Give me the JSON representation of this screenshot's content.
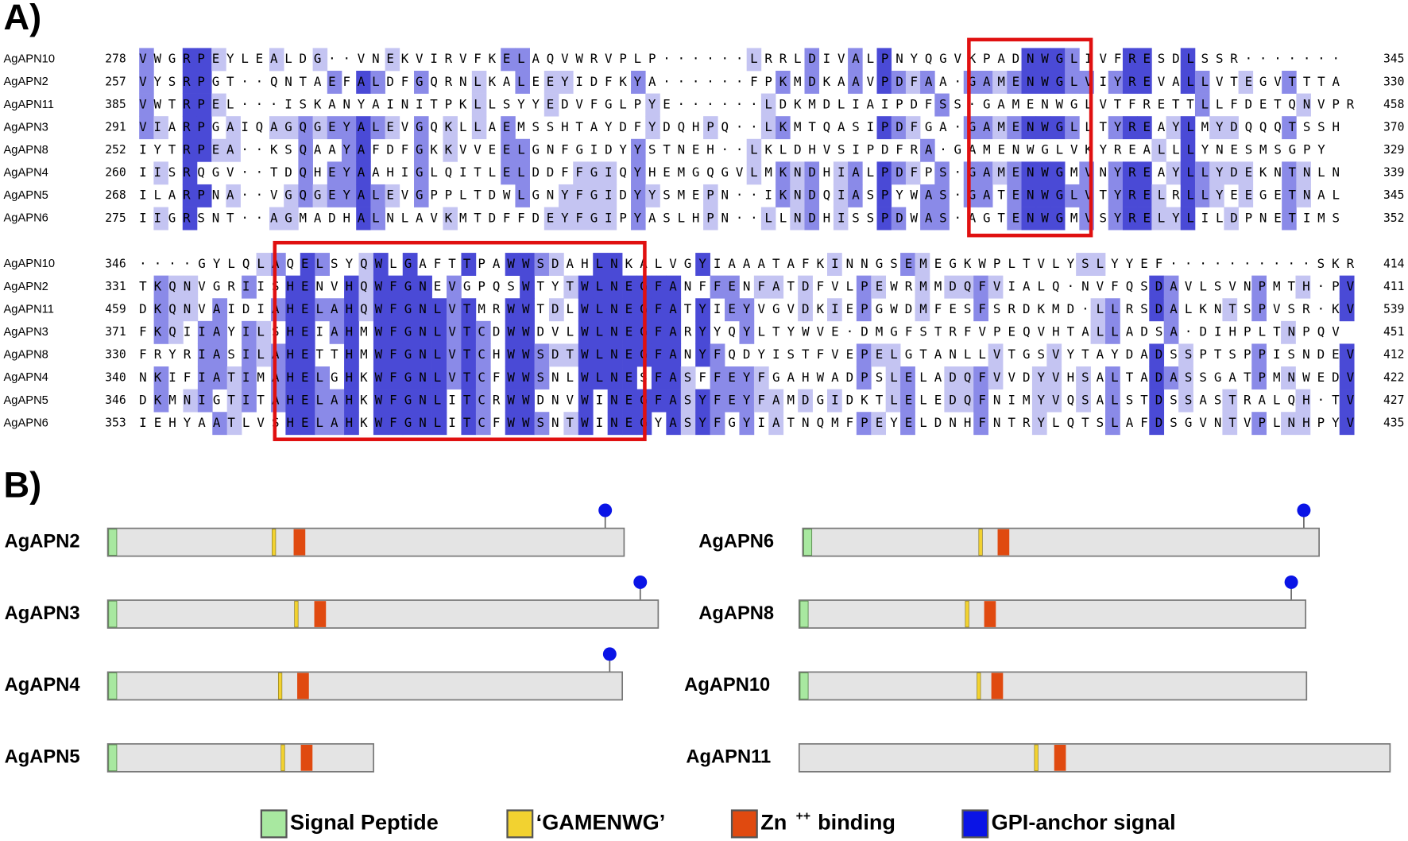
{
  "panel_a": {
    "label": "A)",
    "blocks": [
      {
        "rows": [
          {
            "name": "AgAPN10",
            "start": 278,
            "sequence": "VWGRPEYLEALDG··VNEKVIRVFKELAQVWRVPLP······LRRLDIVALPNYQGVKPADNWGLIVFRESDLSSR·······",
            "end": 345
          },
          {
            "name": "AgAPN2",
            "start": 257,
            "sequence": "VYSRPGT··QNTAEFALDFGQRNLKALEEYIDFKYA······FPKMDKAAVPDFAA·GAMENWGLVIYREVALLVTEGVTTTA",
            "end": 330
          },
          {
            "name": "AgAPN11",
            "start": 385,
            "sequence": "VWTRPEL···ISKANYAINITPKLLSYYEDVFGLPYE······LDKMDLIAIPDFSS·GAMENWGLVTFRETTLLFDETQNVPR",
            "end": 458
          },
          {
            "name": "AgAPN3",
            "start": 291,
            "sequence": "VIARPGAIQAGQGEYALEVGQKLLAEMSSHTAYDFYDQHPQ··LKMTQASIPDFGA·GAMENWGLLTYREAYLMYDQQQTSSH",
            "end": 370
          },
          {
            "name": "AgAPN8",
            "start": 252,
            "sequence": "IYTRPEA··KSQAAYAFDFGKKVVEELGNFGIDYYSTNEH··LKLDHVSIPDFRA·GAMENWGLVKYREALLLYNESMSGPY",
            "end": 329
          },
          {
            "name": "AgAPN4",
            "start": 260,
            "sequence": "IISRQGV··TDQHEYAAHIGLQITLELDDFFGIQYHEMGQGVLMKNDHIALPDFPS·GAMENWGMVNYREAYLLYDEKNTNLN",
            "end": 339
          },
          {
            "name": "AgAPN5",
            "start": 268,
            "sequence": "ILARPNA··VGQGEYALEVGPPLTDWLGNYFGIDYYSMEPN··IKNDQIASPYWAS·GATENWGLVTYRELRLLYEEGETNAL",
            "end": 345
          },
          {
            "name": "AgAPN6",
            "start": 275,
            "sequence": "IIGRSNT··AGMADHALNLAVKMTDFFDEYFGIPYASLHPN··LLNDHISSPDWAS·AGTENWGMVSYRELYLILDPNETIMS",
            "end": 352
          }
        ]
      },
      {
        "rows": [
          {
            "name": "AgAPN10",
            "start": 346,
            "sequence": "····GYLQLAQELSYQWLGAFTTPAWWSDAHLNKALVGYIAAATAFKINNGSEMEGKWPLTVLYSLYYEF··········SKR",
            "end": 414
          },
          {
            "name": "AgAPN2",
            "start": 331,
            "sequence": "TKQNVGRIISHENVHQWFGNEVGPQSWTYTWLNEGFANFFENFATDFVLPEWRMMDQFVIALQ·NVFQSDAVLSVNPMTH·PV",
            "end": 411
          },
          {
            "name": "AgAPN11",
            "start": 459,
            "sequence": "DKQNVAIDIAHELAHQWFGNLVTMRWWTDLWLNEGFATYIEYVGVDKIEPGWDMFESFSRDKMD·LLRSDALKNTSPVSR·KV",
            "end": 539
          },
          {
            "name": "AgAPN3",
            "start": 371,
            "sequence": "FKQIIAYILSHEIAHMWFGNLVTCDWWDVLWLNEGFARYYQYLTYWVE·DMGFSTRFVPEQVHTALLADSA·DIHPLTNPQV",
            "end": 451
          },
          {
            "name": "AgAPN8",
            "start": 330,
            "sequence": "FRYRIASILAHETTHMWFGNLVTCHWWSDTWLNEGFANYFQDYISTFVEPELGTANLLVTGSVYTAYDADSSPTSPPISNDEV",
            "end": 412
          },
          {
            "name": "AgAPN4",
            "start": 340,
            "sequence": "NKIFIATIMAHELGHKWFGNLVTCFWWSNLWLNESFASFFEYFGAHWADPSLELADQFVVDYVHSALTADASSGATPMNWEDV",
            "end": 422
          },
          {
            "name": "AgAPN5",
            "start": 346,
            "sequence": "DKMNIGTITAHELAHKWFGNLITCRWWDNVWINEGFASYFEYFAMDGIDKTLELEDQFNIMYVQSALSTDSSASTRALQH·TV",
            "end": 427
          },
          {
            "name": "AgAPN6",
            "start": 353,
            "sequence": "IEHYAATLVSHELAHKWFGNLITCFWWSNTWINEGYASYFGYIATNQMFPEYELDNHFNTRYLQTSLAFDSGVNTVPLNHPYV",
            "end": 435
          }
        ]
      }
    ]
  },
  "panel_b": {
    "label": "B)",
    "proteins": [
      {
        "name": "AgAPN2"
      },
      {
        "name": "AgAPN3"
      },
      {
        "name": "AgAPN4"
      },
      {
        "name": "AgAPN5"
      },
      {
        "name": "AgAPN6"
      },
      {
        "name": "AgAPN8"
      },
      {
        "name": "AgAPN10"
      },
      {
        "name": "AgAPN11"
      }
    ]
  },
  "legend": [
    {
      "label": "Signal Peptide",
      "color": "#a8e8a0"
    },
    {
      "label": "‘GAMENWG’",
      "color": "#f2d230"
    },
    {
      "label": "Zn",
      "superscript": "++",
      "suffix": "binding",
      "color": "#e04a10"
    },
    {
      "label": "GPI-anchor signal",
      "color": "#0a14e6"
    }
  ]
}
